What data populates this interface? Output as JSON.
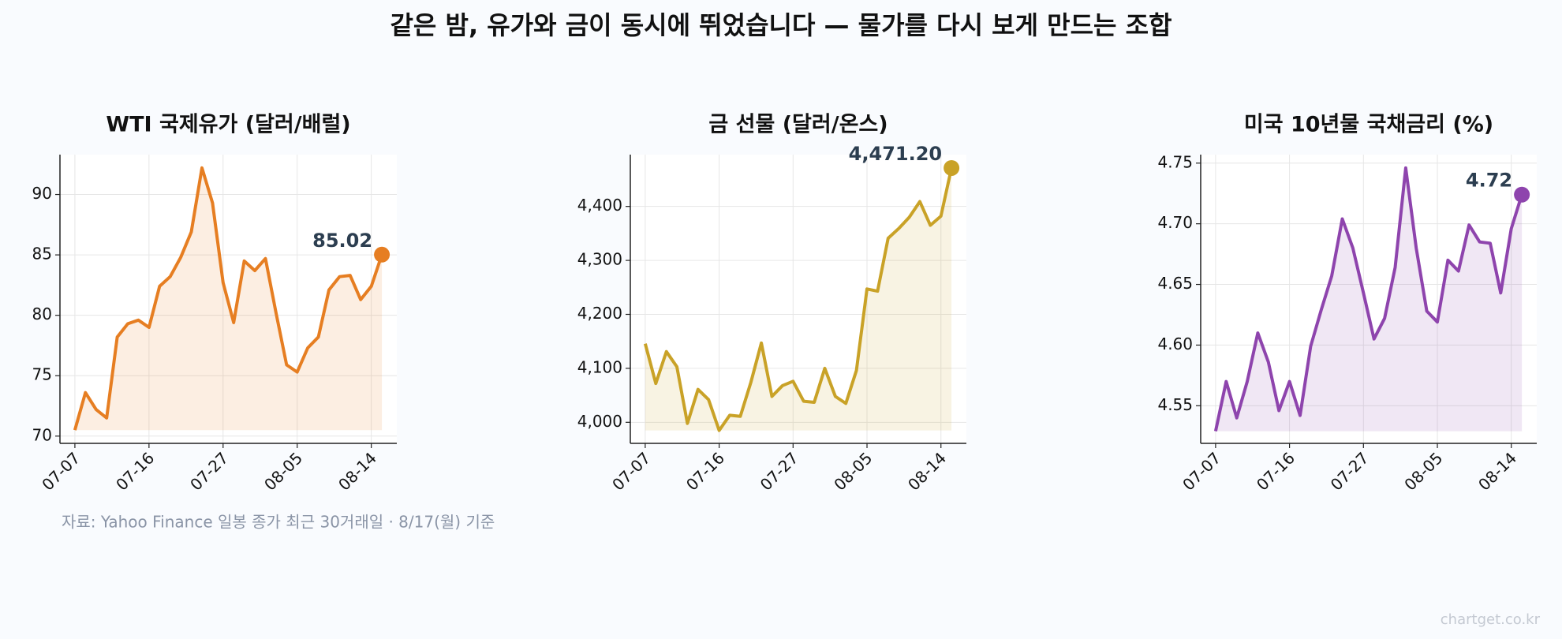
{
  "title": "같은 밤, 유가와 금이 동시에 뛰었습니다 — 물가를 다시 보게 만드는 조합",
  "source": "자료: Yahoo Finance 일봉 종가 최근 30거래일 · 8/17(월) 기준",
  "watermark": "chartget.co.kr",
  "chart_data": [
    {
      "type": "line",
      "title": "WTI 국제유가 (달러/배럴)",
      "categories": [
        "07-07",
        null,
        null,
        null,
        null,
        null,
        null,
        "07-16",
        null,
        null,
        null,
        null,
        null,
        null,
        "07-27",
        null,
        null,
        null,
        null,
        null,
        null,
        "08-05",
        null,
        null,
        null,
        null,
        null,
        null,
        "08-14",
        null
      ],
      "series": [
        {
          "name": "WTI",
          "color": "#e67e22",
          "values": [
            70.5,
            73.6,
            72.2,
            71.5,
            78.2,
            79.3,
            79.6,
            79.0,
            82.4,
            83.2,
            84.8,
            86.9,
            92.2,
            89.3,
            82.7,
            79.4,
            84.5,
            83.7,
            84.7,
            80.2,
            75.9,
            75.3,
            77.3,
            78.2,
            82.1,
            83.2,
            83.3,
            81.3,
            82.4,
            85.02
          ],
          "value_labels": [
            null,
            null,
            null,
            null,
            null,
            null,
            null,
            null,
            null,
            null,
            null,
            null,
            null,
            null,
            null,
            null,
            null,
            null,
            null,
            null,
            null,
            null,
            null,
            null,
            null,
            null,
            null,
            null,
            null,
            "85.02"
          ]
        }
      ],
      "ylim": [
        69.4,
        93.3
      ],
      "yticks": [
        70,
        75,
        80,
        85,
        90
      ],
      "grid": true
    },
    {
      "type": "line",
      "title": "금 선물 (달러/온스)",
      "categories": [
        "07-07",
        null,
        null,
        null,
        null,
        null,
        null,
        "07-16",
        null,
        null,
        null,
        null,
        null,
        null,
        "07-27",
        null,
        null,
        null,
        null,
        null,
        null,
        "08-05",
        null,
        null,
        null,
        null,
        null,
        null,
        "08-14",
        null
      ],
      "series": [
        {
          "name": "금",
          "color": "#c9a227",
          "values": [
            4145.6,
            4072,
            4131,
            4103,
            3998,
            4061,
            4042,
            3985,
            4013,
            4011,
            4074,
            4147,
            4048,
            4068,
            4076,
            4039,
            4037,
            4100,
            4048,
            4035,
            4096,
            4247,
            4243,
            4341,
            4359,
            4380,
            4409,
            4365,
            4382,
            4471.2
          ],
          "value_labels": [
            null,
            null,
            null,
            null,
            null,
            null,
            null,
            null,
            null,
            null,
            null,
            null,
            null,
            null,
            null,
            null,
            null,
            null,
            null,
            null,
            null,
            null,
            null,
            null,
            null,
            null,
            null,
            null,
            null,
            "4,471.20"
          ]
        }
      ],
      "ylim": [
        3961,
        4496
      ],
      "yticks": [
        {
          "value": 4000,
          "label": "4,000"
        },
        {
          "value": 4100,
          "label": "4,100"
        },
        {
          "value": 4200,
          "label": "4,200"
        },
        {
          "value": 4300,
          "label": "4,300"
        },
        {
          "value": 4400,
          "label": "4,400"
        }
      ],
      "grid": true
    },
    {
      "type": "line",
      "title": "미국 10년물 국채금리 (%)",
      "categories": [
        "07-07",
        null,
        null,
        null,
        null,
        null,
        null,
        "07-16",
        null,
        null,
        null,
        null,
        null,
        null,
        "07-27",
        null,
        null,
        null,
        null,
        null,
        null,
        "08-05",
        null,
        null,
        null,
        null,
        null,
        null,
        "08-14",
        null
      ],
      "series": [
        {
          "name": "10년물",
          "color": "#8e44ad",
          "values": [
            4.529,
            4.57,
            4.54,
            4.57,
            4.61,
            4.586,
            4.546,
            4.57,
            4.542,
            4.599,
            4.629,
            4.657,
            4.704,
            4.68,
            4.643,
            4.605,
            4.622,
            4.664,
            4.746,
            4.68,
            4.628,
            4.619,
            4.67,
            4.661,
            4.699,
            4.685,
            4.684,
            4.643,
            4.696,
            4.724
          ],
          "value_labels": [
            null,
            null,
            null,
            null,
            null,
            null,
            null,
            null,
            null,
            null,
            null,
            null,
            null,
            null,
            null,
            null,
            null,
            null,
            null,
            null,
            null,
            null,
            null,
            null,
            null,
            null,
            null,
            null,
            null,
            "4.72"
          ]
        }
      ],
      "ylim": [
        4.519,
        4.757
      ],
      "yticks": [
        4.55,
        {
          "value": 4.6,
          "label": "4.60"
        },
        4.65,
        {
          "value": 4.7,
          "label": "4.70"
        },
        4.75
      ],
      "grid": true
    }
  ]
}
